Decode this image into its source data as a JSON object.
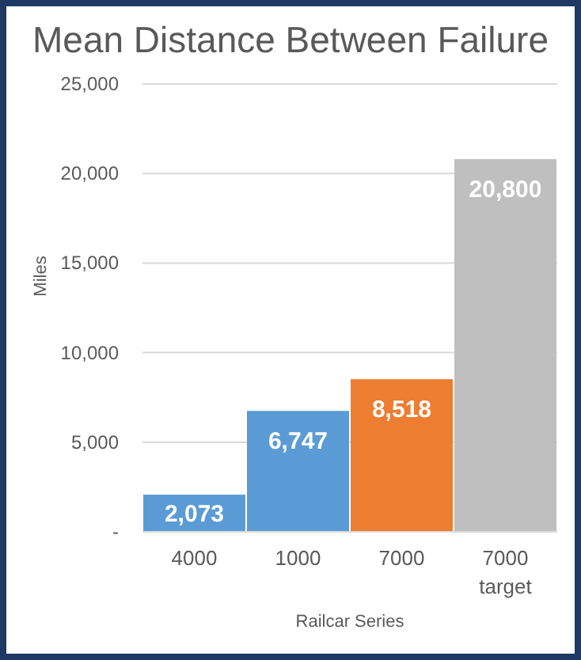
{
  "chart_data": {
    "type": "bar",
    "title": "Mean Distance Between Failure",
    "xlabel": "Railcar Series",
    "ylabel": "Miles",
    "categories": [
      "4000",
      "1000",
      "7000",
      "7000 target"
    ],
    "values": [
      2073,
      6747,
      8518,
      20800
    ],
    "colors": [
      "#5b9bd5",
      "#5b9bd5",
      "#ed7d31",
      "#bfbfbf"
    ],
    "value_labels": [
      "2,073",
      "6,747",
      "8,518",
      "20,800"
    ],
    "ylim": [
      0,
      25000
    ],
    "yticks": [
      {
        "value": 0,
        "label": "-"
      },
      {
        "value": 5000,
        "label": "5,000"
      },
      {
        "value": 10000,
        "label": "10,000"
      },
      {
        "value": 15000,
        "label": "15,000"
      },
      {
        "value": 20000,
        "label": "20,000"
      },
      {
        "value": 25000,
        "label": "25,000"
      }
    ],
    "grid": "y"
  }
}
